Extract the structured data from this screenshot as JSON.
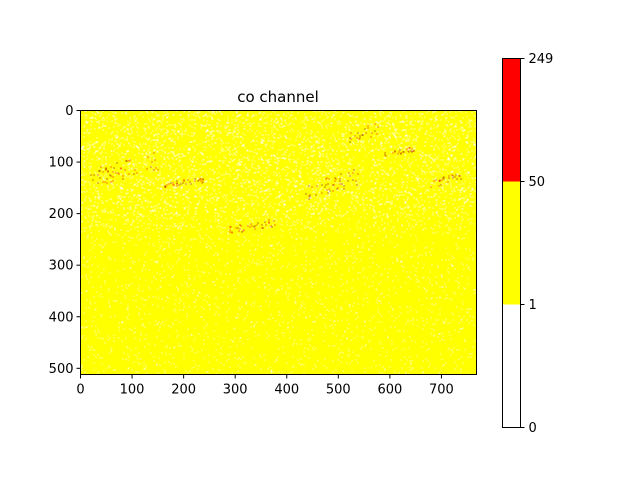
{
  "chart_data": {
    "type": "heatmap",
    "title": "co channel",
    "xlabel": "",
    "ylabel": "",
    "image_shape": [
      512,
      768
    ],
    "x_ticks": [
      0,
      100,
      200,
      300,
      400,
      500,
      600,
      700
    ],
    "y_ticks": [
      0,
      100,
      200,
      300,
      400,
      500
    ],
    "xlim": [
      0,
      768
    ],
    "ylim": [
      512,
      0
    ],
    "colormap": {
      "type": "discrete",
      "boundaries": [
        0,
        1,
        50,
        249
      ],
      "colors": [
        "#ffffff",
        "#ffff00",
        "#ff0000"
      ]
    },
    "colorbar_ticks": [
      0,
      1,
      50,
      249
    ],
    "pixel_value_share": {
      "0": 0.22,
      "1-49": 0.775,
      "50-249": 0.005
    },
    "high_value_streaks": [
      {
        "x": [
          20,
          150
        ],
        "y": [
          80,
          150
        ]
      },
      {
        "x": [
          160,
          240
        ],
        "y": [
          130,
          150
        ]
      },
      {
        "x": [
          290,
          380
        ],
        "y": [
          210,
          240
        ]
      },
      {
        "x": [
          430,
          540
        ],
        "y": [
          110,
          180
        ]
      },
      {
        "x": [
          520,
          580
        ],
        "y": [
          20,
          70
        ]
      },
      {
        "x": [
          590,
          650
        ],
        "y": [
          70,
          90
        ]
      },
      {
        "x": [
          680,
          740
        ],
        "y": [
          120,
          150
        ]
      }
    ],
    "grid": false,
    "legend": "none"
  }
}
